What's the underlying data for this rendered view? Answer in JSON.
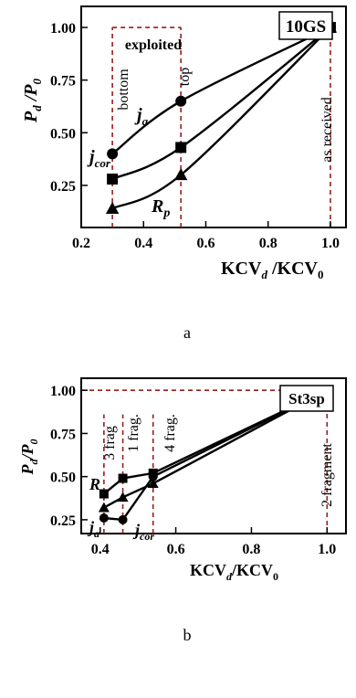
{
  "chart_data": [
    {
      "type": "line",
      "title": "10GS",
      "xlabel": "KCV_d /KCV_0",
      "ylabel": "P_d /P_0",
      "xlim": [
        0.2,
        1.05
      ],
      "ylim": [
        0.05,
        1.1
      ],
      "xticks": [
        "0.2",
        "0.4",
        "0.6",
        "0.8",
        "1.0"
      ],
      "yticks": [
        "0.25",
        "0.50",
        "0.75",
        "1.00"
      ],
      "series": [
        {
          "name": "j_a",
          "marker": "circle",
          "x": [
            0.3,
            0.52,
            1.0
          ],
          "y": [
            0.4,
            0.65,
            1.0
          ]
        },
        {
          "name": "j_cor",
          "marker": "square",
          "x": [
            0.3,
            0.52,
            1.0
          ],
          "y": [
            0.28,
            0.43,
            1.0
          ]
        },
        {
          "name": "R_p",
          "marker": "triangle",
          "x": [
            0.3,
            0.52,
            1.0
          ],
          "y": [
            0.14,
            0.3,
            1.0
          ]
        }
      ],
      "annotations": [
        "exploited",
        "bottom",
        "top",
        "as received"
      ],
      "panel_label": "a"
    },
    {
      "type": "line",
      "title": "St3sp",
      "xlabel": "KCV_d/KCV_0",
      "ylabel": "P_d/P_0",
      "xlim": [
        0.35,
        1.05
      ],
      "ylim": [
        0.17,
        1.07
      ],
      "xticks": [
        "0.4",
        "0.6",
        "0.8",
        "1.0"
      ],
      "yticks": [
        "0.25",
        "0.50",
        "0.75",
        "1.00"
      ],
      "series": [
        {
          "name": "R_p",
          "marker": "square",
          "x": [
            0.41,
            0.46,
            0.54,
            1.0
          ],
          "y": [
            0.4,
            0.49,
            0.52,
            1.0
          ]
        },
        {
          "name": "j_a",
          "marker": "triangle",
          "x": [
            0.41,
            0.46,
            0.54,
            1.0
          ],
          "y": [
            0.32,
            0.38,
            0.46,
            1.0
          ]
        },
        {
          "name": "j_cor",
          "marker": "circle",
          "x": [
            0.41,
            0.46,
            0.54,
            1.0
          ],
          "y": [
            0.26,
            0.25,
            0.5,
            1.0
          ]
        }
      ],
      "annotations": [
        "3 frag",
        "1 frag.",
        "4 frag.",
        "2 fragment"
      ],
      "panel_label": "b"
    }
  ]
}
